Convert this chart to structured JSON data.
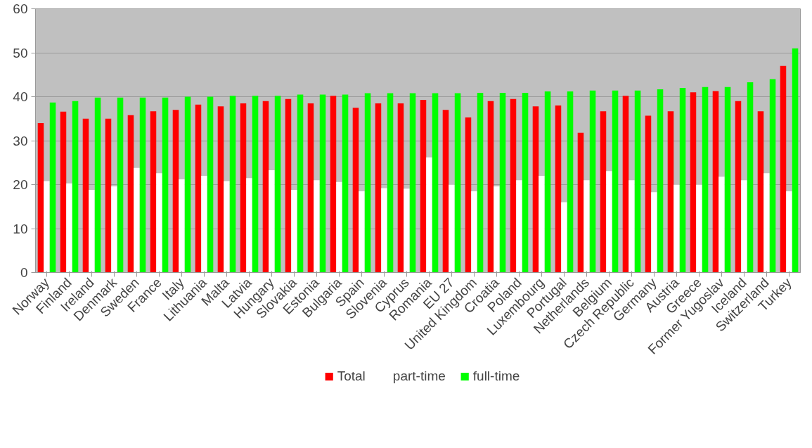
{
  "chart_data": {
    "type": "bar",
    "categories": [
      "Norway",
      "Finland",
      "Ireland",
      "Denmark",
      "Sweden",
      "France",
      "Italy",
      "Lithuania",
      "Malta",
      "Latvia",
      "Hungary",
      "Slovakia",
      "Estonia",
      "Bulgaria",
      "Spain",
      "Slovenia",
      "Cyprus",
      "Romania",
      "EU 27",
      "United Kingdom",
      "Croatia",
      "Poland",
      "Luxembourg",
      "Portugal",
      "Netherlands",
      "Belgium",
      "Czech Republic",
      "Germany",
      "Austria",
      "Greece",
      "Former Yugoslav",
      "Iceland",
      "Switzerland",
      "Turkey"
    ],
    "series": [
      {
        "name": "Total",
        "color": "#ff0000",
        "values": [
          34,
          36.6,
          35,
          35,
          35.8,
          36.7,
          37,
          38.2,
          37.8,
          38.5,
          39,
          39.5,
          38.5,
          40.2,
          37.5,
          38.5,
          38.5,
          39.3,
          37,
          35.3,
          39,
          39.5,
          37.8,
          38,
          31.8,
          36.7,
          40.2,
          35.7,
          36.7,
          41,
          41.3,
          39,
          36.7,
          47
        ]
      },
      {
        "name": "part-time",
        "color": "#ffffff",
        "values": [
          20.8,
          20.3,
          18.8,
          19.6,
          23.8,
          22.6,
          21.2,
          22,
          20.8,
          21.5,
          23.3,
          18.8,
          21,
          20.6,
          18.5,
          19.2,
          19.1,
          26.2,
          20,
          18.5,
          19.6,
          21,
          22,
          16,
          21,
          23.1,
          21,
          18.3,
          20,
          20,
          21.8,
          21,
          22.6,
          18.5
        ]
      },
      {
        "name": "full-time",
        "color": "#00ff00",
        "values": [
          38.7,
          39,
          39.8,
          39.8,
          39.8,
          39.8,
          40,
          40,
          40.2,
          40.2,
          40.2,
          40.5,
          40.5,
          40.5,
          40.8,
          40.8,
          40.8,
          40.8,
          40.8,
          40.9,
          40.9,
          40.9,
          41.2,
          41.2,
          41.4,
          41.4,
          41.4,
          41.7,
          42,
          42.2,
          42.2,
          43.3,
          44,
          51
        ]
      }
    ],
    "ylim": [
      0,
      60
    ],
    "yticks": [
      0,
      10,
      20,
      30,
      40,
      50,
      60
    ],
    "grid": "y",
    "legend": "bottom"
  }
}
